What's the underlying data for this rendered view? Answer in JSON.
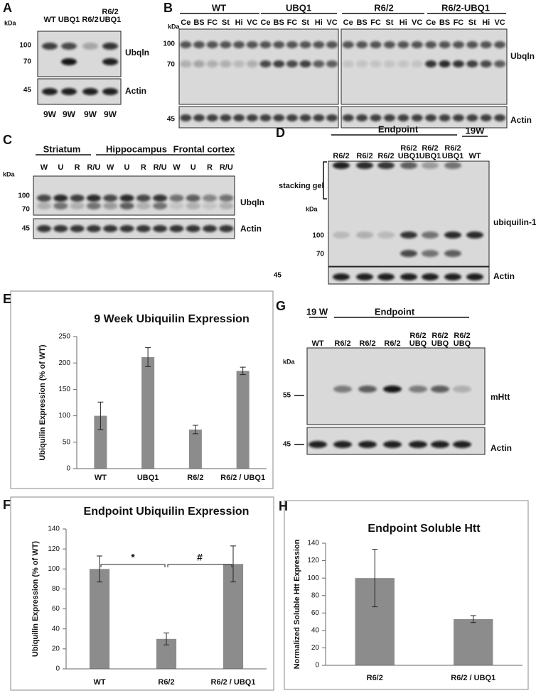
{
  "blots": [
    {
      "panel": "A",
      "groups": [],
      "lanes": [
        [
          "WT"
        ],
        [
          "UBQ1"
        ],
        [
          "R6/2"
        ],
        [
          "R6/2",
          "UBQ1"
        ]
      ],
      "kda": "kDa",
      "markers": [
        "100",
        "70",
        "45"
      ],
      "proteins": [
        "Ubqln",
        "Actin"
      ],
      "footer": [
        "9W",
        "9W",
        "9W",
        "9W"
      ]
    },
    {
      "panel": "B",
      "groups": [
        "WT",
        "UBQ1",
        "R6/2",
        "R6/2-UBQ1"
      ],
      "lanes": [
        [
          "Ce"
        ],
        [
          "BS"
        ],
        [
          "FC"
        ],
        [
          "St"
        ],
        [
          "Hi"
        ],
        [
          "VC"
        ],
        [
          "Ce"
        ],
        [
          "BS"
        ],
        [
          "FC"
        ],
        [
          "St"
        ],
        [
          "Hi"
        ],
        [
          "VC"
        ],
        [
          "Ce"
        ],
        [
          "BS"
        ],
        [
          "FC"
        ],
        [
          "St"
        ],
        [
          "Hi"
        ],
        [
          "VC"
        ],
        [
          "Ce"
        ],
        [
          "BS"
        ],
        [
          "FC"
        ],
        [
          "St"
        ],
        [
          "Hi"
        ],
        [
          "VC"
        ]
      ],
      "kda": "kDa",
      "markers": [
        "100",
        "70",
        "45"
      ],
      "proteins": [
        "Ubqln",
        "Actin"
      ]
    },
    {
      "panel": "C",
      "groups": [
        "Striatum",
        "Hippocampus",
        "Frontal cortex"
      ],
      "lanes": [
        [
          "W"
        ],
        [
          "U"
        ],
        [
          "R"
        ],
        [
          "R/U"
        ],
        [
          "W"
        ],
        [
          "U"
        ],
        [
          "R"
        ],
        [
          "R/U"
        ],
        [
          "W"
        ],
        [
          "U"
        ],
        [
          "R"
        ],
        [
          "R/U"
        ]
      ],
      "kda": "kDa",
      "markers": [
        "100",
        "70",
        "45"
      ],
      "proteins": [
        "Ubqln",
        "Actin"
      ]
    },
    {
      "panel": "D",
      "groups": [
        "Endpoint",
        "19W"
      ],
      "lanes": [
        [
          "R6/2"
        ],
        [
          "R6/2"
        ],
        [
          "R6/2"
        ],
        [
          "R6/2",
          "UBQ1"
        ],
        [
          "R6/2",
          "UBQ1"
        ],
        [
          "R6/2",
          "UBQ1"
        ],
        [
          "WT"
        ]
      ],
      "note": "stacking gel",
      "kda": "kDa",
      "markers": [
        "100",
        "70",
        "45"
      ],
      "proteins": [
        "ubiquilin-1",
        "Actin"
      ]
    },
    {
      "panel": "G",
      "groups": [
        "19 W",
        "Endpoint"
      ],
      "lanes": [
        [
          "WT"
        ],
        [
          "R6/2"
        ],
        [
          "R6/2"
        ],
        [
          "R6/2"
        ],
        [
          "R6/2",
          "UBQ"
        ],
        [
          "R6/2",
          "UBQ"
        ],
        [
          "R6/2",
          "UBQ"
        ]
      ],
      "kda": "kDa",
      "markers": [
        "55",
        "45"
      ],
      "proteins": [
        "mHtt",
        "Actin"
      ]
    }
  ],
  "chart_data": [
    {
      "panel": "E",
      "type": "bar",
      "title": "9 Week Ubiquilin Expression",
      "y_label": "Ubiquilin Expression (% of WT)",
      "categories": [
        "WT",
        "UBQ1",
        "R6/2",
        "R6/2 / UBQ1"
      ],
      "values": [
        100,
        211,
        74,
        185
      ],
      "errors": [
        26,
        18,
        8,
        7
      ],
      "color": "#8c8c8c",
      "ylim": [
        0,
        250
      ],
      "yticks": [
        0,
        50,
        100,
        150,
        200,
        250
      ],
      "grid": false
    },
    {
      "panel": "F",
      "type": "bar",
      "title": "Endpoint Ubiquilin Expression",
      "y_label": "Ubiquilin Expression (% of WT)",
      "categories": [
        "WT",
        "R6/2",
        "R6/2 / UBQ1"
      ],
      "values": [
        100,
        30,
        105
      ],
      "errors": [
        13,
        6,
        18
      ],
      "color": "#8c8c8c",
      "ylim": [
        0,
        140
      ],
      "yticks": [
        0,
        20,
        40,
        60,
        80,
        100,
        120,
        140
      ],
      "grid": false,
      "annotations": [
        "*",
        "#"
      ]
    },
    {
      "panel": "H",
      "type": "bar",
      "title": "Endpoint Soluble Htt",
      "y_label": "Normalized Soluble Htt Expression",
      "categories": [
        "R6/2",
        "R6/2 / UBQ1"
      ],
      "values": [
        100,
        53
      ],
      "errors": [
        33,
        4
      ],
      "color": "#8c8c8c",
      "ylim": [
        0,
        140
      ],
      "yticks": [
        0,
        20,
        40,
        60,
        80,
        100,
        120,
        140
      ],
      "grid": false
    }
  ]
}
